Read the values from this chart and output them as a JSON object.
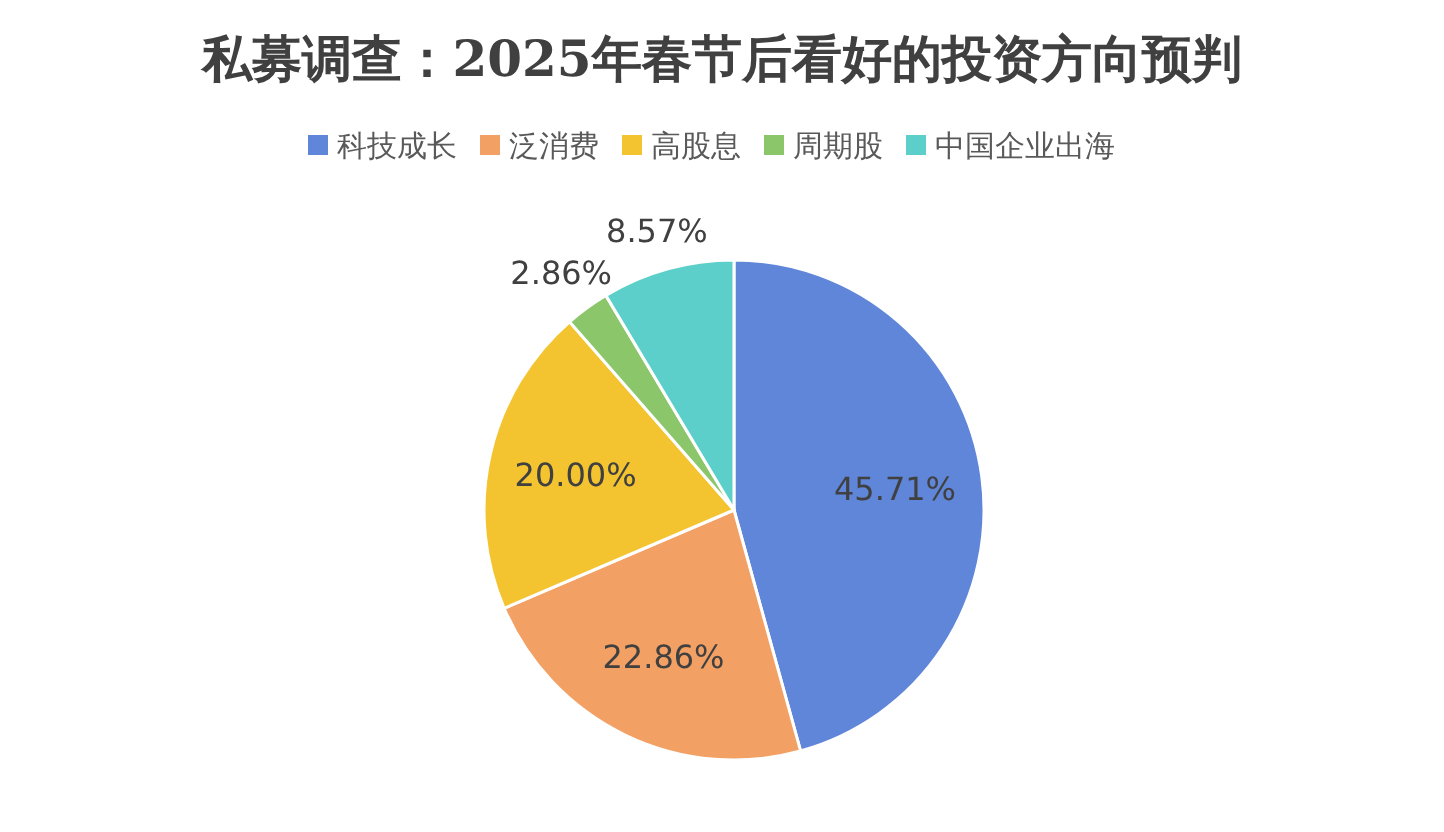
{
  "chart_data": {
    "type": "pie",
    "title": "私募调查：2025年春节后看好的投资方向预判",
    "categories": [
      "科技成长",
      "泛消费",
      "高股息",
      "周期股",
      "中国企业出海"
    ],
    "values": [
      45.71,
      22.86,
      20.0,
      2.86,
      8.57
    ],
    "colors": [
      "#5f86d8",
      "#f3a064",
      "#f4c430",
      "#8cc66a",
      "#5ccfca"
    ],
    "value_labels": [
      "45.71%",
      "22.86%",
      "20.00%",
      "2.86%",
      "8.57%"
    ],
    "legend": "top"
  }
}
